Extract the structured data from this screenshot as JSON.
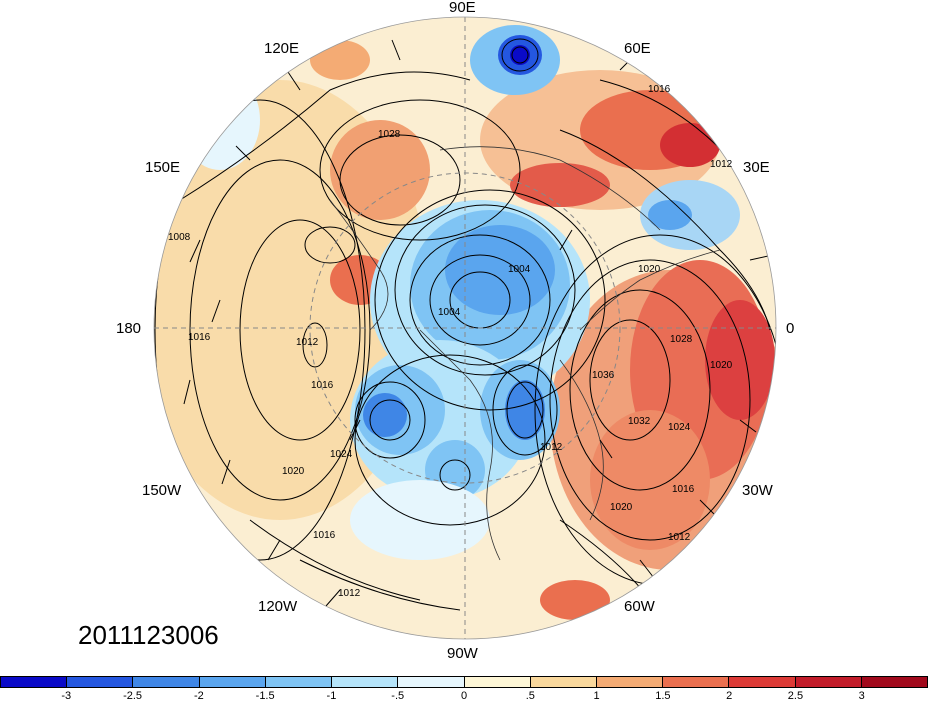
{
  "timestamp": "2011123006",
  "map": {
    "projection": "north polar stereographic",
    "longitude_labels": [
      "90E",
      "60E",
      "30E",
      "0",
      "30W",
      "60W",
      "90W",
      "120W",
      "150W",
      "180",
      "150E",
      "120E"
    ],
    "contour_labels": [
      "1016",
      "1012",
      "1028",
      "1020",
      "1008",
      "1004",
      "1012",
      "1016",
      "1016",
      "1024",
      "1020",
      "1016",
      "1012",
      "1036",
      "1032",
      "1028",
      "1024",
      "1020",
      "1016",
      "1012",
      "1020",
      "1004",
      "1012"
    ]
  },
  "colorbar": {
    "colors": [
      "#0a0ac8",
      "#2457e0",
      "#3f86e6",
      "#5aa5ee",
      "#7fc4f4",
      "#b5e4fa",
      "#e6f6fd",
      "#fdf6d6",
      "#f9d89d",
      "#f4ab74",
      "#ea6f4f",
      "#dc3a36",
      "#c21c2a",
      "#a1091c"
    ],
    "tick_labels": [
      "-3",
      "-2.5",
      "-2",
      "-1.5",
      "-1",
      "-.5",
      "0",
      ".5",
      "1",
      "1.5",
      "2",
      "2.5",
      "3"
    ]
  }
}
